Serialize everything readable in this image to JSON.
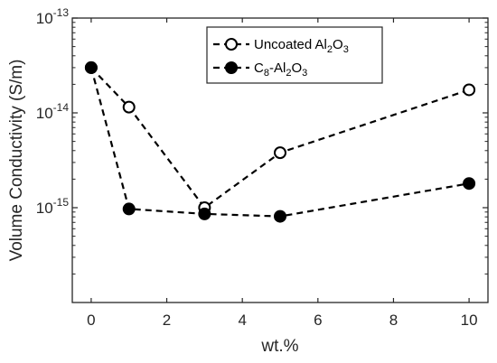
{
  "chart_data": {
    "type": "line",
    "title": "",
    "xlabel": "wt.%",
    "ylabel": "Volume Conductivity (S/m)",
    "yscale": "log",
    "xlim": [
      -0.5,
      10.5
    ],
    "ylim": [
      1e-16,
      1e-13
    ],
    "x_ticks": [
      0,
      2,
      4,
      6,
      8,
      10
    ],
    "x_tick_labels": [
      "0",
      "2",
      "4",
      "6",
      "8",
      "10"
    ],
    "y_ticks": [
      1e-15,
      1e-14,
      1e-13
    ],
    "y_tick_labels": [
      {
        "base": "10",
        "exp": "-15"
      },
      {
        "base": "10",
        "exp": "-14"
      },
      {
        "base": "10",
        "exp": "-13"
      }
    ],
    "grid": false,
    "legend_position": "top-right",
    "series": [
      {
        "name_parts": [
          {
            "text": "Uncoated Al"
          },
          {
            "text": "2",
            "sub": true
          },
          {
            "text": "O"
          },
          {
            "text": "3",
            "sub": true
          }
        ],
        "marker": "open-circle",
        "line_style": "dashed",
        "x": [
          0,
          1,
          3,
          5,
          10
        ],
        "y": [
          3e-14,
          1.15e-14,
          1e-15,
          3.8e-15,
          1.75e-14
        ]
      },
      {
        "name_parts": [
          {
            "text": "C"
          },
          {
            "text": "8",
            "sub": true
          },
          {
            "text": "-Al"
          },
          {
            "text": "2",
            "sub": true
          },
          {
            "text": "O"
          },
          {
            "text": "3",
            "sub": true
          }
        ],
        "marker": "filled-circle",
        "line_style": "dashed",
        "x": [
          0,
          1,
          3,
          5,
          10
        ],
        "y": [
          3e-14,
          9.7e-16,
          8.6e-16,
          8.1e-16,
          1.8e-15
        ]
      }
    ]
  }
}
